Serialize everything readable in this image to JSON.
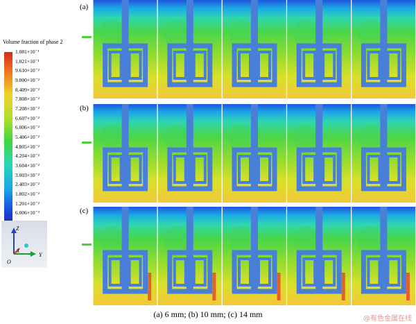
{
  "legend": {
    "title": "Volume fraction of phase 2",
    "labels": [
      "1.081×10⁻¹",
      "1.021×10⁻¹",
      "9.610×10⁻²",
      "9.000×10⁻²",
      "8.409×10⁻²",
      "7.808×10⁻²",
      "7.208×10⁻²",
      "6.607×10⁻²",
      "6.006×10⁻²",
      "5.406×10⁻²",
      "4.805×10⁻²",
      "4.204×10⁻²",
      "3.604×10⁻²",
      "3.003×10⁻²",
      "2.403×10⁻²",
      "1.802×10⁻²",
      "1.201×10⁻²",
      "6.006×10⁻³",
      "0"
    ]
  },
  "axes_labels": {
    "z": "Z",
    "x": "X",
    "y": "Y",
    "o": "O"
  },
  "rows": [
    {
      "label": "(a)"
    },
    {
      "label": "(b)"
    },
    {
      "label": "(c)"
    }
  ],
  "caption": "(a) 6 mm; (b) 10 mm; (c) 14 mm",
  "watermark": "@有色金属在线",
  "colors": {
    "impeller": "#4a7fd8",
    "green": "#4cd13a"
  }
}
